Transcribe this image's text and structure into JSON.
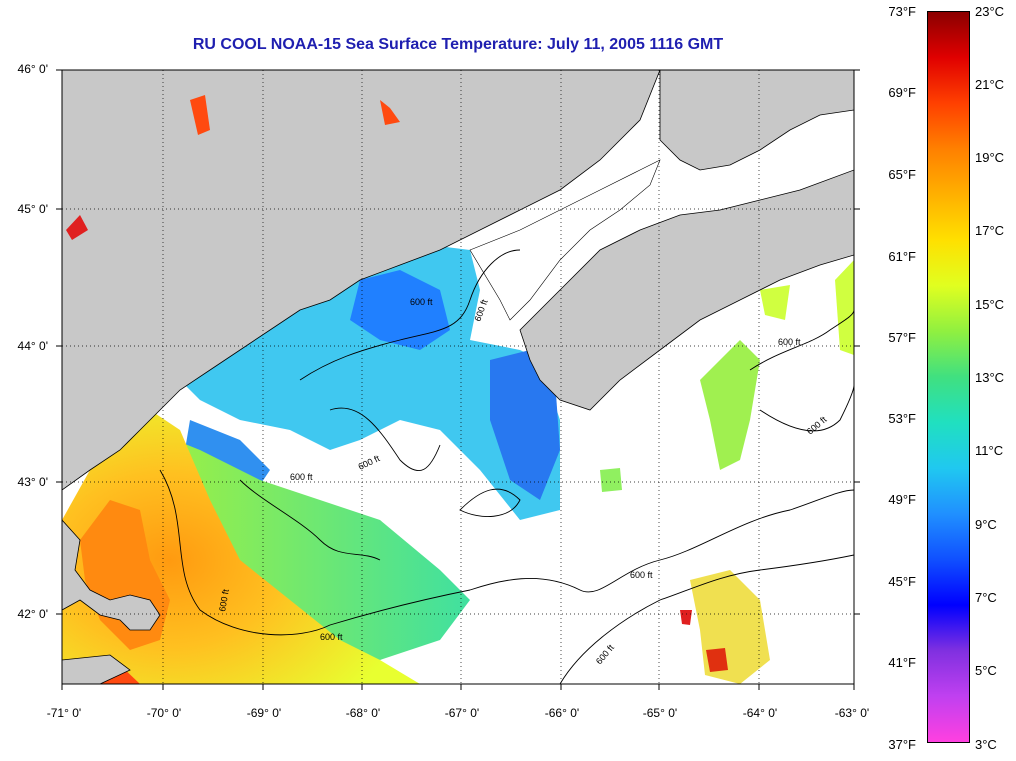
{
  "title": "RU COOL  NOAA-15  Sea Surface Temperature:  July 11, 2005 1116 GMT",
  "title_color": "#1f1fb0",
  "map": {
    "latitude_labels": [
      "46° 0'",
      "45° 0'",
      "44° 0'",
      "43° 0'",
      "42° 0'"
    ],
    "longitude_labels": [
      "-71° 0'",
      "-70° 0'",
      "-69° 0'",
      "-68° 0'",
      "-67° 0'",
      "-66° 0'",
      "-65° 0'",
      "-64° 0'",
      "-63° 0'"
    ],
    "contour_label": "600 ft",
    "land_color": "#c8c8c8",
    "cloud_color": "#ffffff",
    "contour_color": "#000000"
  },
  "colorbar": {
    "fahrenheit_labels": [
      "73°F",
      "69°F",
      "65°F",
      "61°F",
      "57°F",
      "53°F",
      "49°F",
      "45°F",
      "41°F",
      "37°F"
    ],
    "celsius_labels": [
      "23°C",
      "21°C",
      "19°C",
      "17°C",
      "15°C",
      "13°C",
      "11°C",
      "9°C",
      "7°C",
      "5°C",
      "3°C"
    ],
    "gradient_colors": [
      "#8b0000",
      "#e00000",
      "#ff4000",
      "#ff8000",
      "#ffb000",
      "#ffe000",
      "#e0ff20",
      "#90f040",
      "#40e080",
      "#20e0c0",
      "#20c8f0",
      "#2090ff",
      "#1050ff",
      "#0000ff",
      "#8030e0",
      "#c040f0",
      "#ff40e0"
    ]
  }
}
